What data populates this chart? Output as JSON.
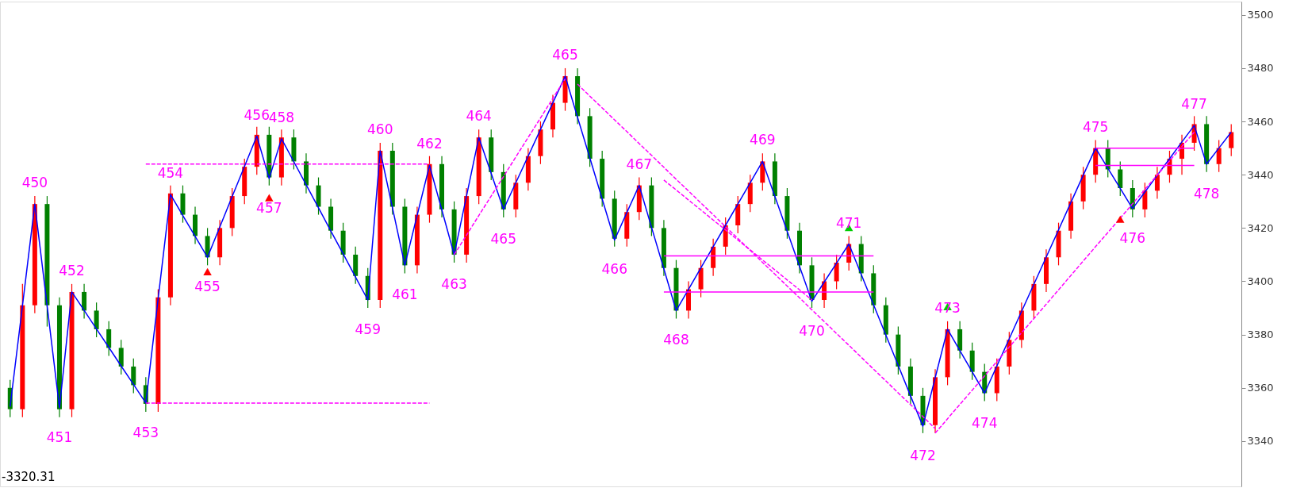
{
  "chart_data": {
    "type": "candlestick",
    "categories": [
      null,
      null,
      null,
      null,
      null,
      null,
      null,
      null,
      null,
      null,
      null,
      null,
      null,
      null,
      null,
      null,
      null,
      null,
      null,
      null,
      null,
      null,
      null,
      null,
      null,
      null,
      null,
      null,
      null,
      null,
      null,
      null,
      null,
      null,
      null,
      null,
      null,
      null,
      null,
      null,
      null,
      null,
      null,
      null,
      null,
      null,
      null,
      null,
      null,
      null,
      null,
      null,
      null,
      null,
      null,
      null,
      null,
      null,
      null,
      null,
      null,
      null,
      null,
      null,
      null,
      null,
      null,
      null,
      null,
      null,
      null,
      null,
      null,
      null,
      null,
      null,
      null,
      null,
      null,
      null,
      null,
      null,
      null,
      null,
      null,
      null,
      null,
      null,
      null,
      null,
      null,
      null,
      null,
      null,
      null,
      null,
      null,
      null,
      null,
      null
    ],
    "ohlc": [
      [
        3360,
        3363,
        3349,
        3352
      ],
      [
        3352,
        3399,
        3349,
        3391
      ],
      [
        3391,
        3432,
        3388,
        3429
      ],
      [
        3429,
        3432,
        3383,
        3391
      ],
      [
        3391,
        3394,
        3349,
        3352
      ],
      [
        3352,
        3399,
        3349,
        3396
      ],
      [
        3396,
        3399,
        3386,
        3389
      ],
      [
        3389,
        3392,
        3379,
        3382
      ],
      [
        3382,
        3385,
        3372,
        3375
      ],
      [
        3375,
        3378,
        3365,
        3368
      ],
      [
        3368,
        3371,
        3358,
        3361
      ],
      [
        3361,
        3364,
        3351,
        3354
      ],
      [
        3354,
        3397,
        3351,
        3394
      ],
      [
        3394,
        3436,
        3391,
        3433
      ],
      [
        3433,
        3436,
        3422,
        3425
      ],
      [
        3425,
        3428,
        3414,
        3417
      ],
      [
        3417,
        3420,
        3406,
        3409
      ],
      [
        3409,
        3423,
        3406,
        3420
      ],
      [
        3420,
        3435,
        3417,
        3432
      ],
      [
        3432,
        3446,
        3429,
        3443
      ],
      [
        3443,
        3458,
        3440,
        3455
      ],
      [
        3455,
        3458,
        3436,
        3439
      ],
      [
        3439,
        3457,
        3436,
        3454
      ],
      [
        3454,
        3457,
        3442,
        3445
      ],
      [
        3445,
        3448,
        3433,
        3436
      ],
      [
        3436,
        3439,
        3425,
        3428
      ],
      [
        3428,
        3431,
        3416,
        3419
      ],
      [
        3419,
        3422,
        3407,
        3410
      ],
      [
        3410,
        3413,
        3399,
        3402
      ],
      [
        3402,
        3405,
        3390,
        3393
      ],
      [
        3393,
        3452,
        3390,
        3449
      ],
      [
        3449,
        3452,
        3425,
        3428
      ],
      [
        3428,
        3431,
        3403,
        3406
      ],
      [
        3406,
        3428,
        3403,
        3425
      ],
      [
        3425,
        3447,
        3422,
        3444
      ],
      [
        3444,
        3447,
        3424,
        3427
      ],
      [
        3427,
        3430,
        3407,
        3410
      ],
      [
        3410,
        3435,
        3407,
        3432
      ],
      [
        3432,
        3457,
        3429,
        3454
      ],
      [
        3454,
        3457,
        3438,
        3441
      ],
      [
        3441,
        3444,
        3424,
        3427
      ],
      [
        3427,
        3440,
        3424,
        3437
      ],
      [
        3437,
        3450,
        3434,
        3447
      ],
      [
        3447,
        3460,
        3444,
        3457
      ],
      [
        3457,
        3470,
        3454,
        3467
      ],
      [
        3467,
        3480,
        3464,
        3477
      ],
      [
        3477,
        3480,
        3459,
        3462
      ],
      [
        3462,
        3465,
        3443,
        3446
      ],
      [
        3446,
        3449,
        3428,
        3431
      ],
      [
        3431,
        3434,
        3413,
        3416
      ],
      [
        3416,
        3429,
        3413,
        3426
      ],
      [
        3426,
        3439,
        3423,
        3436
      ],
      [
        3436,
        3439,
        3417,
        3420
      ],
      [
        3420,
        3423,
        3402,
        3405
      ],
      [
        3405,
        3408,
        3386,
        3389
      ],
      [
        3389,
        3400,
        3386,
        3397
      ],
      [
        3397,
        3408,
        3394,
        3405
      ],
      [
        3405,
        3416,
        3402,
        3413
      ],
      [
        3413,
        3424,
        3410,
        3421
      ],
      [
        3421,
        3432,
        3418,
        3429
      ],
      [
        3429,
        3440,
        3426,
        3437
      ],
      [
        3437,
        3448,
        3434,
        3445
      ],
      [
        3445,
        3448,
        3429,
        3432
      ],
      [
        3432,
        3435,
        3416,
        3419
      ],
      [
        3419,
        3422,
        3403,
        3406
      ],
      [
        3406,
        3409,
        3390,
        3393
      ],
      [
        3393,
        3403,
        3390,
        3400
      ],
      [
        3400,
        3410,
        3397,
        3407
      ],
      [
        3407,
        3417,
        3404,
        3414
      ],
      [
        3414,
        3417,
        3400,
        3403
      ],
      [
        3403,
        3406,
        3388,
        3391
      ],
      [
        3391,
        3394,
        3377,
        3380
      ],
      [
        3380,
        3383,
        3365,
        3368
      ],
      [
        3368,
        3371,
        3354,
        3357
      ],
      [
        3357,
        3360,
        3343,
        3346
      ],
      [
        3346,
        3367,
        3343,
        3364
      ],
      [
        3364,
        3385,
        3361,
        3382
      ],
      [
        3382,
        3385,
        3371,
        3374
      ],
      [
        3374,
        3377,
        3363,
        3366
      ],
      [
        3366,
        3369,
        3355,
        3358
      ],
      [
        3358,
        3371,
        3355,
        3368
      ],
      [
        3368,
        3381,
        3365,
        3378
      ],
      [
        3378,
        3392,
        3375,
        3389
      ],
      [
        3389,
        3402,
        3386,
        3399
      ],
      [
        3399,
        3412,
        3396,
        3409
      ],
      [
        3409,
        3422,
        3406,
        3419
      ],
      [
        3419,
        3433,
        3416,
        3430
      ],
      [
        3430,
        3443,
        3427,
        3440
      ],
      [
        3440,
        3453,
        3437,
        3450
      ],
      [
        3450,
        3453,
        3439,
        3442
      ],
      [
        3442,
        3445,
        3432,
        3435
      ],
      [
        3435,
        3438,
        3424,
        3427
      ],
      [
        3427,
        3437,
        3424,
        3434
      ],
      [
        3434,
        3443,
        3431,
        3440
      ],
      [
        3440,
        3449,
        3437,
        3446
      ],
      [
        3446,
        3455,
        3440,
        3452
      ],
      [
        3452,
        3462,
        3449,
        3459
      ],
      [
        3459,
        3462,
        3441,
        3444
      ],
      [
        3444,
        3453,
        3441,
        3450
      ],
      [
        3450,
        3459,
        3447,
        3456
      ]
    ],
    "colors": [
      "#008000",
      "#ff0000",
      "#ff0000",
      "#008000",
      "#008000",
      "#ff0000",
      "#008000",
      "#008000",
      "#008000",
      "#008000",
      "#008000",
      "#008000",
      "#ff0000",
      "#ff0000",
      "#008000",
      "#008000",
      "#008000",
      "#ff0000",
      "#ff0000",
      "#ff0000",
      "#ff0000",
      "#008000",
      "#ff0000",
      "#008000",
      "#008000",
      "#008000",
      "#008000",
      "#008000",
      "#008000",
      "#008000",
      "#ff0000",
      "#008000",
      "#008000",
      "#ff0000",
      "#ff0000",
      "#008000",
      "#008000",
      "#ff0000",
      "#ff0000",
      "#008000",
      "#008000",
      "#ff0000",
      "#ff0000",
      "#ff0000",
      "#ff0000",
      "#ff0000",
      "#008000",
      "#008000",
      "#008000",
      "#008000",
      "#ff0000",
      "#ff0000",
      "#008000",
      "#008000",
      "#008000",
      "#ff0000",
      "#ff0000",
      "#ff0000",
      "#ff0000",
      "#ff0000",
      "#ff0000",
      "#ff0000",
      "#008000",
      "#008000",
      "#008000",
      "#008000",
      "#ff0000",
      "#ff0000",
      "#ff0000",
      "#008000",
      "#008000",
      "#008000",
      "#008000",
      "#008000",
      "#008000",
      "#ff0000",
      "#ff0000",
      "#008000",
      "#008000",
      "#008000",
      "#ff0000",
      "#ff0000",
      "#ff0000",
      "#ff0000",
      "#ff0000",
      "#ff0000",
      "#ff0000",
      "#ff0000",
      "#ff0000",
      "#008000",
      "#008000",
      "#008000",
      "#ff0000",
      "#ff0000",
      "#ff0000",
      "#ff0000",
      "#ff0000",
      "#008000",
      "#ff0000",
      "#ff0000"
    ],
    "series": [
      {
        "type": "line",
        "color": "#0000ff",
        "line_style": "solid",
        "values": [
          3353,
          3390.8,
          3429,
          3390.8,
          3352.5,
          3396,
          3389.1,
          3382.1,
          3375.2,
          3368.2,
          3361.3,
          3354.3,
          3393.5,
          3432.6,
          3424.7,
          3416.9,
          3409,
          3420.4,
          3431.8,
          3443.1,
          3454.5,
          3438.6,
          3453.5,
          3444.9,
          3436.2,
          3427.6,
          3418.9,
          3410.3,
          3401.6,
          3393,
          3449,
          3427.5,
          3406,
          3424.8,
          3443.5,
          3426.8,
          3410,
          3432,
          3454,
          3440.5,
          3427,
          3437,
          3447,
          3457,
          3467,
          3477,
          3461.6,
          3446.3,
          3430.9,
          3415.5,
          3425.8,
          3436,
          3420.3,
          3404.7,
          3389,
          3397,
          3405,
          3413,
          3421,
          3429,
          3437,
          3445,
          3431.9,
          3418.8,
          3405.6,
          3392.5,
          3399.7,
          3406.8,
          3414,
          3402.6,
          3391.2,
          3379.8,
          3368.4,
          3357,
          3345.6,
          3363.8,
          3382,
          3374,
          3366,
          3358,
          3368.2,
          3378.4,
          3388.7,
          3398.9,
          3409.1,
          3419.3,
          3429.6,
          3439.8,
          3450,
          3442.4,
          3434.9,
          3427.3,
          3433.5,
          3439.8,
          3446,
          3452.3,
          3458.5,
          3444,
          3450,
          3456
        ]
      },
      {
        "type": "line",
        "color": "#ff00ff",
        "line_style": "dashed",
        "values": [
          null,
          null,
          null,
          null,
          null,
          null,
          null,
          null,
          null,
          null,
          null,
          null,
          null,
          null,
          null,
          null,
          null,
          null,
          null,
          null,
          null,
          null,
          null,
          null,
          null,
          null,
          null,
          null,
          null,
          null,
          null,
          null,
          null,
          null,
          null,
          null,
          3410,
          3417.3,
          3424.7,
          3432,
          3439.3,
          3446.7,
          3454,
          3461.3,
          3468.7,
          3476,
          null,
          null,
          null,
          null,
          null,
          null,
          null,
          null,
          null,
          null,
          null,
          null,
          null,
          null,
          null,
          null,
          null,
          null,
          null,
          null,
          null,
          null,
          null,
          null,
          null,
          null,
          null,
          null,
          null,
          null,
          null,
          null,
          null,
          null,
          null,
          null,
          null,
          null,
          null,
          null,
          null,
          null,
          null,
          null,
          null,
          null,
          null,
          null,
          null,
          null,
          null,
          null,
          null,
          null
        ]
      },
      {
        "type": "line",
        "color": "#ff00ff",
        "line_style": "dashed",
        "values": [
          null,
          null,
          null,
          null,
          null,
          null,
          null,
          null,
          null,
          null,
          null,
          null,
          null,
          null,
          null,
          null,
          null,
          null,
          null,
          null,
          null,
          null,
          null,
          null,
          null,
          null,
          null,
          null,
          null,
          null,
          null,
          null,
          null,
          null,
          null,
          null,
          null,
          null,
          null,
          null,
          null,
          null,
          null,
          null,
          null,
          null,
          3474,
          3469.5,
          3465.1,
          3460.6,
          3456.2,
          3451.7,
          3447.3,
          3442.8,
          3438.3,
          3433.9,
          3429.4,
          3425,
          3420.5,
          3416.1,
          3411.6,
          3407.1,
          3402.7,
          3398.2,
          3393.8,
          3389.3,
          3384.9,
          3380.4,
          3376,
          3371.5,
          3367,
          3362.6,
          3358.1,
          3353.7,
          3349.2,
          3344.7,
          null,
          null,
          null,
          null,
          null,
          null,
          null,
          null,
          null,
          null,
          null,
          null,
          null,
          null,
          null,
          null,
          null,
          null,
          null,
          null,
          null,
          null,
          null,
          null
        ]
      },
      {
        "type": "line",
        "color": "#ff00ff",
        "line_style": "dashed",
        "values": [
          null,
          null,
          null,
          null,
          null,
          null,
          null,
          null,
          null,
          null,
          null,
          null,
          null,
          null,
          null,
          null,
          null,
          null,
          null,
          null,
          null,
          null,
          null,
          null,
          null,
          null,
          null,
          null,
          null,
          null,
          null,
          null,
          null,
          null,
          null,
          null,
          null,
          null,
          null,
          null,
          null,
          null,
          null,
          null,
          null,
          null,
          null,
          null,
          null,
          null,
          null,
          null,
          null,
          3438,
          3434.3,
          3430.5,
          3426.8,
          3423,
          3419.3,
          3415.5,
          3411.8,
          3408,
          3404.3,
          3400.5,
          3396.8,
          3393,
          null,
          null,
          null,
          null,
          null,
          null,
          null,
          null,
          null,
          null,
          null,
          null,
          null,
          null,
          null,
          null,
          null,
          null,
          null,
          null,
          null,
          null,
          null,
          null,
          null,
          null,
          null,
          null,
          null,
          null,
          null,
          null,
          null,
          null
        ]
      },
      {
        "type": "line",
        "color": "#ff00ff",
        "line_style": "dashed",
        "values": [
          null,
          null,
          null,
          null,
          null,
          null,
          null,
          null,
          null,
          null,
          null,
          null,
          null,
          null,
          null,
          null,
          null,
          null,
          null,
          null,
          null,
          null,
          null,
          null,
          null,
          null,
          null,
          null,
          null,
          null,
          null,
          null,
          null,
          null,
          null,
          null,
          null,
          null,
          null,
          null,
          null,
          null,
          null,
          null,
          null,
          null,
          null,
          null,
          null,
          null,
          null,
          null,
          null,
          null,
          null,
          null,
          null,
          null,
          null,
          null,
          null,
          null,
          null,
          null,
          null,
          null,
          null,
          null,
          null,
          null,
          null,
          null,
          null,
          null,
          null,
          3343,
          3348.4,
          3353.8,
          3359.1,
          3364.5,
          3369.9,
          3375.3,
          3380.7,
          3386,
          3391.4,
          3396.8,
          3402.2,
          3407.6,
          3413,
          3418.3,
          3423.7,
          3429.1,
          3434.5,
          3439.9,
          3445.2,
          3450.6,
          3456,
          null,
          null,
          null
        ]
      },
      {
        "type": "line",
        "color": "#ff00ff",
        "line_style": "dashed",
        "values": [
          null,
          null,
          null,
          null,
          null,
          null,
          null,
          null,
          null,
          null,
          null,
          3444,
          3444,
          3444,
          3444,
          3444,
          3444,
          3444,
          3444,
          3444,
          3444,
          3444,
          3444,
          3444,
          3444,
          3444,
          3444,
          3444,
          3444,
          3444,
          3444,
          3444,
          3444,
          3444,
          3444,
          null,
          null,
          null,
          null,
          null,
          null,
          null,
          null,
          null,
          null,
          null,
          null,
          null,
          null,
          null,
          null,
          null,
          null,
          null,
          null,
          null,
          null,
          null,
          null,
          null,
          null,
          null,
          null,
          null,
          null,
          null,
          null,
          null,
          null,
          null,
          null,
          null,
          null,
          null,
          null,
          null,
          null,
          null,
          null,
          null,
          null,
          null,
          null,
          null,
          null,
          null,
          null,
          null,
          null,
          null,
          null,
          null,
          null,
          null,
          null,
          null,
          null,
          null,
          null,
          null
        ]
      },
      {
        "type": "line",
        "color": "#ff00ff",
        "line_style": "dashed",
        "values": [
          null,
          null,
          null,
          null,
          null,
          null,
          null,
          null,
          null,
          null,
          null,
          3354.3,
          3354.3,
          3354.3,
          3354.3,
          3354.3,
          3354.3,
          3354.3,
          3354.3,
          3354.3,
          3354.3,
          3354.3,
          3354.3,
          3354.3,
          3354.3,
          3354.3,
          3354.3,
          3354.3,
          3354.3,
          3354.3,
          3354.3,
          3354.3,
          3354.3,
          3354.3,
          3354.3,
          null,
          null,
          null,
          null,
          null,
          null,
          null,
          null,
          null,
          null,
          null,
          null,
          null,
          null,
          null,
          null,
          null,
          null,
          null,
          null,
          null,
          null,
          null,
          null,
          null,
          null,
          null,
          null,
          null,
          null,
          null,
          null,
          null,
          null,
          null,
          null,
          null,
          null,
          null,
          null,
          null,
          null,
          null,
          null,
          null,
          null,
          null,
          null,
          null,
          null,
          null,
          null,
          null,
          null,
          null,
          null,
          null,
          null,
          null,
          null,
          null,
          null,
          null,
          null,
          null
        ]
      },
      {
        "type": "line",
        "color": "#ff00ff",
        "line_style": "solid",
        "values": [
          null,
          null,
          null,
          null,
          null,
          null,
          null,
          null,
          null,
          null,
          null,
          null,
          null,
          null,
          null,
          null,
          null,
          null,
          null,
          null,
          null,
          null,
          null,
          null,
          null,
          null,
          null,
          null,
          null,
          null,
          null,
          null,
          null,
          null,
          null,
          null,
          null,
          null,
          null,
          null,
          null,
          null,
          null,
          null,
          null,
          null,
          null,
          null,
          null,
          null,
          null,
          null,
          null,
          3409.5,
          3409.5,
          3409.5,
          3409.5,
          3409.5,
          3409.5,
          3409.5,
          3409.5,
          3409.5,
          3409.5,
          3409.5,
          3409.5,
          3409.5,
          3409.5,
          3409.5,
          3409.5,
          3409.5,
          3409.5,
          null,
          null,
          null,
          null,
          null,
          null,
          null,
          null,
          null,
          null,
          null,
          null,
          null,
          null,
          null,
          null,
          null,
          null,
          null,
          null,
          null,
          null,
          null,
          null,
          null,
          null,
          null,
          null,
          null
        ]
      },
      {
        "type": "line",
        "color": "#ff00ff",
        "line_style": "solid",
        "values": [
          null,
          null,
          null,
          null,
          null,
          null,
          null,
          null,
          null,
          null,
          null,
          null,
          null,
          null,
          null,
          null,
          null,
          null,
          null,
          null,
          null,
          null,
          null,
          null,
          null,
          null,
          null,
          null,
          null,
          null,
          null,
          null,
          null,
          null,
          null,
          null,
          null,
          null,
          null,
          null,
          null,
          null,
          null,
          null,
          null,
          null,
          null,
          null,
          null,
          null,
          null,
          null,
          null,
          3396,
          3396,
          3396,
          3396,
          3396,
          3396,
          3396,
          3396,
          3396,
          3396,
          3396,
          3396,
          3396,
          3396,
          3396,
          3396,
          3396,
          3396,
          null,
          null,
          null,
          null,
          null,
          null,
          null,
          null,
          null,
          null,
          null,
          null,
          null,
          null,
          null,
          null,
          null,
          null,
          null,
          null,
          null,
          null,
          null,
          null,
          null,
          null,
          null,
          null,
          null
        ]
      },
      {
        "type": "line",
        "color": "#ff00ff",
        "line_style": "solid",
        "values": [
          null,
          null,
          null,
          null,
          null,
          null,
          null,
          null,
          null,
          null,
          null,
          null,
          null,
          null,
          null,
          null,
          null,
          null,
          null,
          null,
          null,
          null,
          null,
          null,
          null,
          null,
          null,
          null,
          null,
          null,
          null,
          null,
          null,
          null,
          null,
          null,
          null,
          null,
          null,
          null,
          null,
          null,
          null,
          null,
          null,
          null,
          null,
          null,
          null,
          null,
          null,
          null,
          null,
          null,
          null,
          null,
          null,
          null,
          null,
          null,
          null,
          null,
          null,
          null,
          null,
          null,
          null,
          null,
          null,
          null,
          null,
          null,
          null,
          null,
          null,
          null,
          null,
          null,
          null,
          null,
          null,
          null,
          null,
          null,
          null,
          null,
          null,
          null,
          3450,
          3450,
          3450,
          3450,
          3450,
          3450,
          3450,
          3450,
          3450,
          null,
          null,
          null
        ]
      },
      {
        "type": "line",
        "color": "#ff00ff",
        "line_style": "solid",
        "values": [
          null,
          null,
          null,
          null,
          null,
          null,
          null,
          null,
          null,
          null,
          null,
          null,
          null,
          null,
          null,
          null,
          null,
          null,
          null,
          null,
          null,
          null,
          null,
          null,
          null,
          null,
          null,
          null,
          null,
          null,
          null,
          null,
          null,
          null,
          null,
          null,
          null,
          null,
          null,
          null,
          null,
          null,
          null,
          null,
          null,
          null,
          null,
          null,
          null,
          null,
          null,
          null,
          null,
          null,
          null,
          null,
          null,
          null,
          null,
          null,
          null,
          null,
          null,
          null,
          null,
          null,
          null,
          null,
          null,
          null,
          null,
          null,
          null,
          null,
          null,
          null,
          null,
          null,
          null,
          null,
          null,
          null,
          null,
          null,
          null,
          null,
          null,
          null,
          3443.5,
          3443.5,
          3443.5,
          3443.5,
          3443.5,
          3443.5,
          3443.5,
          3443.5,
          3443.5,
          null,
          null,
          null
        ]
      },
      {
        "type": "scatter",
        "color": "#ff0000",
        "marker": "triangle",
        "values": [
          null,
          null,
          null,
          null,
          null,
          null,
          null,
          null,
          null,
          null,
          null,
          null,
          null,
          null,
          null,
          null,
          3403.6,
          null,
          null,
          null,
          null,
          3431.4,
          null,
          null,
          null,
          null,
          null,
          null,
          null,
          null,
          null,
          null,
          null,
          null,
          null,
          null,
          null,
          null,
          null,
          null,
          null,
          null,
          null,
          null,
          null,
          null,
          null,
          null,
          null,
          null,
          null,
          null,
          null,
          null,
          null,
          null,
          null,
          null,
          null,
          null,
          null,
          null,
          null,
          null,
          null,
          null,
          null,
          null,
          null,
          null,
          null,
          null,
          null,
          null,
          null,
          null,
          null,
          null,
          null,
          null,
          null,
          null,
          null,
          null,
          null,
          null,
          null,
          null,
          null,
          null,
          3423.3,
          null,
          null,
          null,
          null,
          null,
          null,
          null,
          null,
          null
        ]
      },
      {
        "type": "scatter",
        "color": "#00cc00",
        "marker": "triangle",
        "values": [
          null,
          null,
          null,
          null,
          null,
          null,
          null,
          null,
          null,
          null,
          null,
          null,
          null,
          null,
          null,
          null,
          null,
          null,
          null,
          null,
          null,
          null,
          null,
          null,
          null,
          null,
          null,
          null,
          null,
          null,
          null,
          null,
          null,
          null,
          null,
          null,
          null,
          null,
          null,
          null,
          null,
          null,
          null,
          null,
          null,
          null,
          null,
          null,
          null,
          null,
          null,
          null,
          null,
          null,
          null,
          null,
          null,
          null,
          null,
          null,
          null,
          null,
          null,
          null,
          null,
          null,
          null,
          null,
          3420.2,
          null,
          null,
          null,
          null,
          null,
          null,
          null,
          3390.5,
          null,
          null,
          null,
          null,
          null,
          null,
          null,
          null,
          null,
          null,
          null,
          null,
          null,
          null,
          null,
          null,
          null,
          null,
          null,
          null,
          null,
          null,
          null
        ]
      }
    ],
    "annotations": [
      {
        "text": "450",
        "y": 3429
      },
      {
        "text": "451",
        "y": 3352.5
      },
      {
        "text": "452",
        "y": 3396
      },
      {
        "text": "453",
        "y": 3354.3
      },
      {
        "text": "454",
        "y": 3432.6
      },
      {
        "text": "455",
        "y": 3409
      },
      {
        "text": "456",
        "y": 3454.5
      },
      {
        "text": "457",
        "y": 3438.6
      },
      {
        "text": "458",
        "y": 3453.5
      },
      {
        "text": "459",
        "y": 3393
      },
      {
        "text": "460",
        "y": 3449
      },
      {
        "text": "461",
        "y": 3406
      },
      {
        "text": "462",
        "y": 3443.5
      },
      {
        "text": "463",
        "y": 3410
      },
      {
        "text": "464",
        "y": 3454
      },
      {
        "text": "465",
        "y": 3427
      },
      {
        "text": "465",
        "y": 3477
      },
      {
        "text": "466",
        "y": 3415.5
      },
      {
        "text": "467",
        "y": 3436
      },
      {
        "text": "468",
        "y": 3389
      },
      {
        "text": "469",
        "y": 3445
      },
      {
        "text": "470",
        "y": 3392.5
      },
      {
        "text": "471",
        "y": 3414
      },
      {
        "text": "472",
        "y": 3345.6
      },
      {
        "text": "473",
        "y": 3382
      },
      {
        "text": "474",
        "y": 3358
      },
      {
        "text": "475",
        "y": 3450
      },
      {
        "text": "476",
        "y": 3427.3
      },
      {
        "text": "477",
        "y": 3458.5
      },
      {
        "text": "478",
        "y": 3444
      },
      "-3320.31"
    ],
    "ylim": [
      3323,
      3505
    ],
    "yticks": [
      3340,
      3360,
      3380,
      3400,
      3420,
      3440,
      3460,
      3480,
      3500
    ],
    "tick_labels": "y",
    "grid": false
  }
}
